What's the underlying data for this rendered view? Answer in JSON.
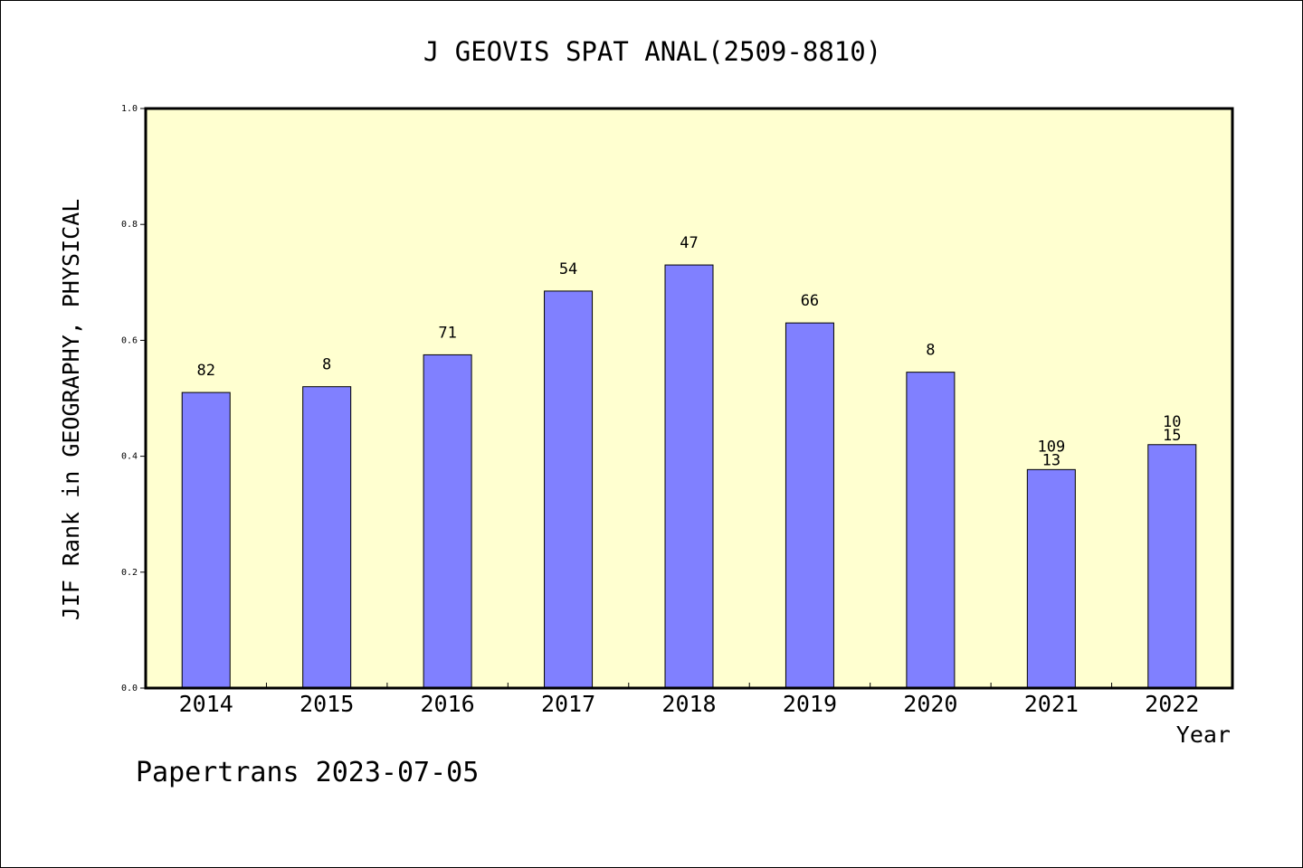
{
  "chart_data": {
    "type": "bar",
    "title": "J GEOVIS SPAT ANAL(2509-8810)",
    "xlabel": "Year",
    "ylabel": "JIF Rank in GEOGRAPHY, PHYSICAL",
    "categories": [
      "2014",
      "2015",
      "2016",
      "2017",
      "2018",
      "2019",
      "2020",
      "2021",
      "2022"
    ],
    "values": [
      0.51,
      0.52,
      0.575,
      0.685,
      0.73,
      0.63,
      0.545,
      0.377,
      0.42
    ],
    "bar_labels": [
      [
        "82"
      ],
      [
        "8"
      ],
      [
        "71"
      ],
      [
        "54"
      ],
      [
        "47"
      ],
      [
        "66"
      ],
      [
        "8"
      ],
      [
        "109",
        "13"
      ],
      [
        "10",
        "15"
      ]
    ],
    "ylim": [
      0,
      1.0
    ],
    "yticks": [
      0.0,
      0.2,
      0.4,
      0.6,
      0.8,
      1.0
    ],
    "ytick_labels": [
      "0.0",
      "0.2",
      "0.4",
      "0.6",
      "0.8",
      "1.0"
    ],
    "grid": false,
    "colors": {
      "bar": "#8080ff",
      "plot_background": "#ffffd0",
      "axes": "#000000"
    }
  },
  "footer": {
    "credit": "Papertrans 2023-07-05"
  }
}
